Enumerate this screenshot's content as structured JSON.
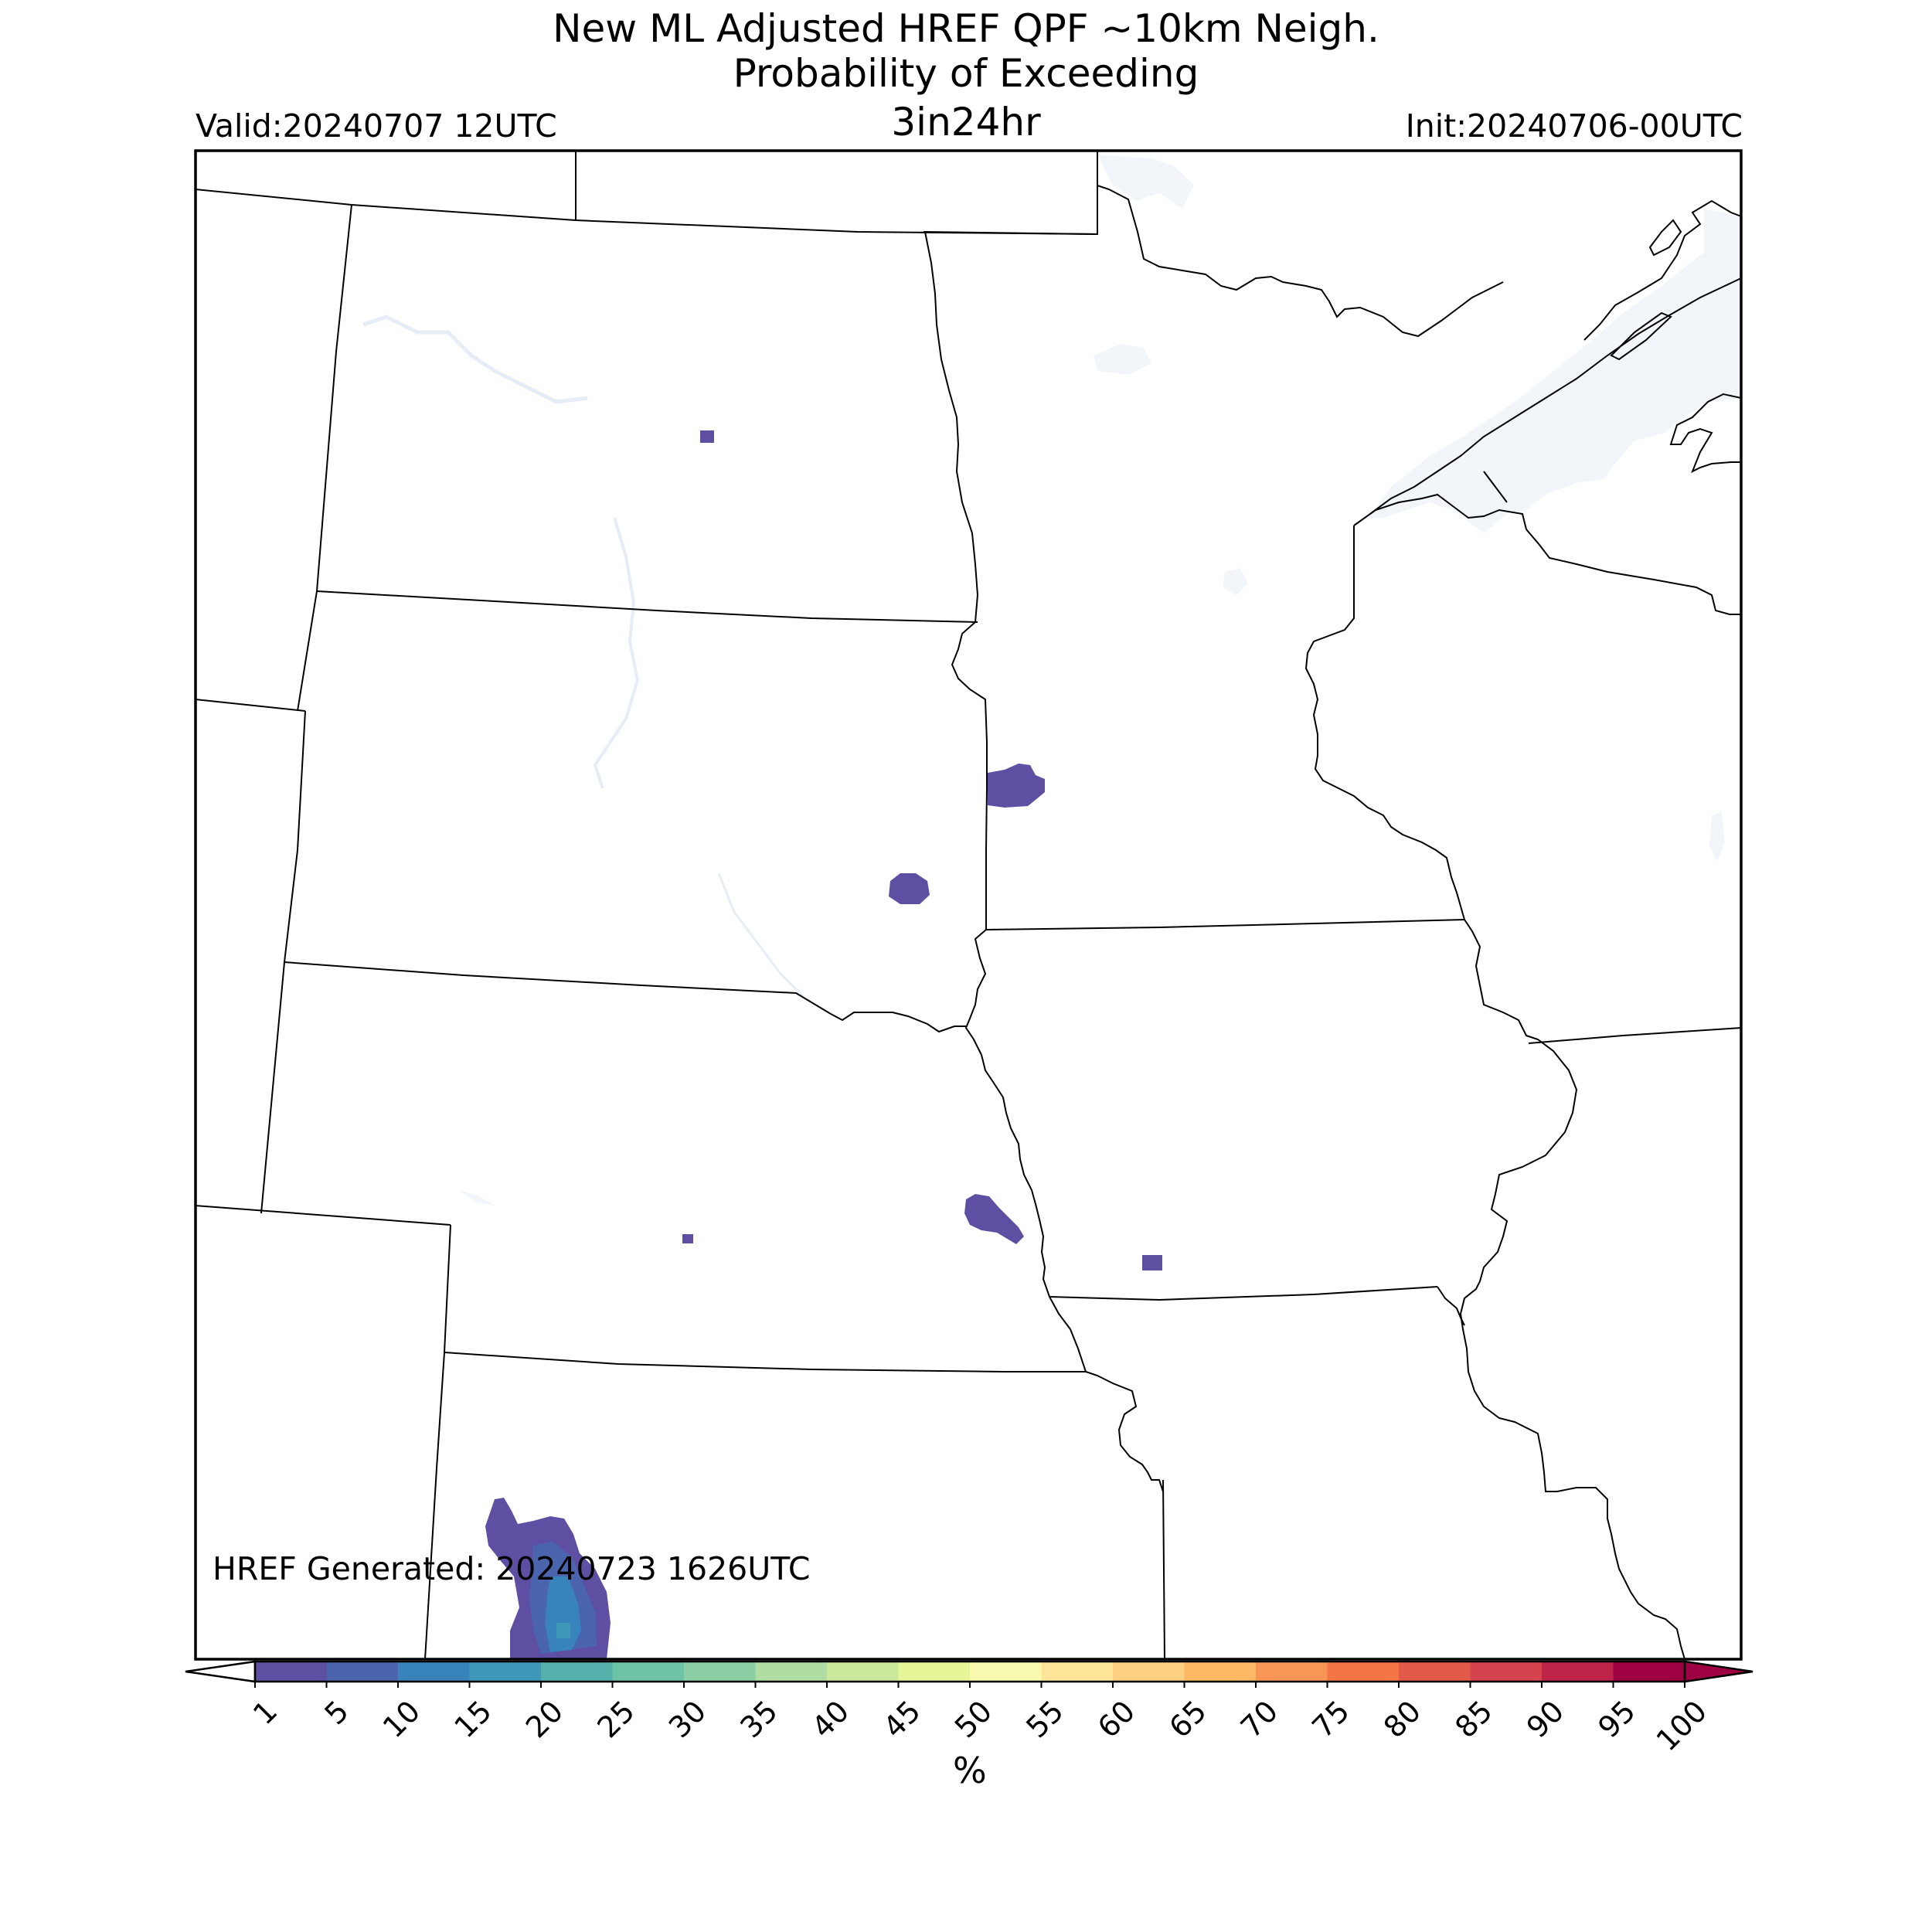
{
  "title": {
    "line1": "New ML Adjusted HREF QPF ~10km Neigh.",
    "line2": "Probability of Exceeding",
    "line3": "3in24hr"
  },
  "valid_label": "Valid:20240707 12UTC",
  "init_label": "Init:20240706-00UTC",
  "generated_label": "HREF Generated: 20240723 1626UTC",
  "colorbar": {
    "unit_label": "%",
    "ticks": [
      "1",
      "5",
      "10",
      "15",
      "20",
      "25",
      "30",
      "35",
      "40",
      "45",
      "50",
      "55",
      "60",
      "65",
      "70",
      "75",
      "80",
      "85",
      "90",
      "95",
      "100"
    ],
    "colors": [
      "#5e4fa2",
      "#4a64ae",
      "#3883bb",
      "#3f97b7",
      "#56b1ad",
      "#6dc3a5",
      "#8ccfa4",
      "#b0dda2",
      "#cbe99d",
      "#e6f598",
      "#f7faae",
      "#fee59a",
      "#fdd181",
      "#fdb866",
      "#f99555",
      "#f47646",
      "#e45a49",
      "#d4434e",
      "#be2449",
      "#9e0142"
    ],
    "extend": "both"
  },
  "layers": {
    "water_color": "#f2f6fb",
    "boundary_color": "#000000",
    "probability_areas": [
      {
        "region": "north-central North Dakota",
        "category": "1-5"
      },
      {
        "region": "eastern South Dakota / SW Minnesota border",
        "category": "1-5"
      },
      {
        "region": "southeastern South Dakota",
        "category": "1-5"
      },
      {
        "region": "eastern Nebraska",
        "category": "1-5"
      },
      {
        "region": "south-central Nebraska",
        "category": "1-5"
      },
      {
        "region": "southwestern Iowa",
        "category": "1-5"
      },
      {
        "region": "southwestern Kansas",
        "category": "1-25"
      }
    ]
  }
}
